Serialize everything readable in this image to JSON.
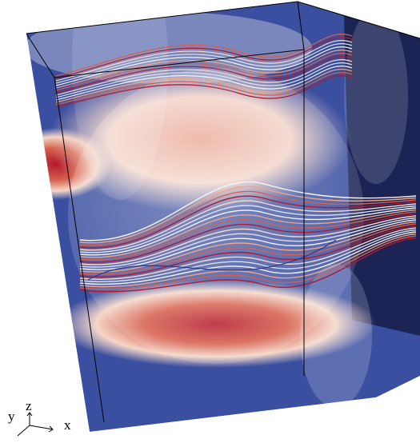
{
  "axes": {
    "y": "y",
    "z": "z",
    "x": "x"
  }
}
